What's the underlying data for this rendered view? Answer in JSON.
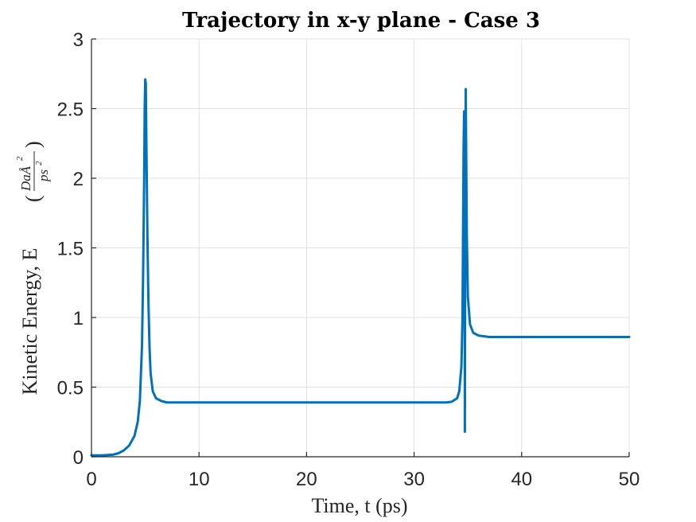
{
  "chart_data": {
    "type": "line",
    "title": "Trajectory in x-y plane - Case 3",
    "xlabel": "Time, t (ps)",
    "ylabel": "Kinetic Energy, E",
    "ylabel_unit": {
      "numerator": "DaÅ",
      "numerator_exp": "2",
      "denominator": "ps",
      "denominator_exp": "2"
    },
    "xlim": [
      0,
      50
    ],
    "ylim": [
      0,
      3
    ],
    "xticks": [
      0,
      10,
      20,
      30,
      40,
      50
    ],
    "yticks": [
      0,
      0.5,
      1,
      1.5,
      2,
      2.5,
      3
    ],
    "xtick_labels": [
      "0",
      "10",
      "20",
      "30",
      "40",
      "50"
    ],
    "ytick_labels": [
      "0",
      "0.5",
      "1",
      "1.5",
      "2",
      "2.5",
      "3"
    ],
    "grid": true,
    "line_color": "#0072BD",
    "series": [
      {
        "x": [
          0,
          1,
          2,
          2.5,
          3,
          3.5,
          4,
          4.3,
          4.5,
          4.7,
          4.8,
          4.9,
          4.95,
          5.0,
          5.05,
          5.1,
          5.2,
          5.3,
          5.4,
          5.5,
          5.7,
          6.0,
          6.5,
          7,
          8,
          10,
          20,
          30,
          32,
          33,
          33.5,
          34,
          34.2,
          34.4,
          34.5,
          34.55,
          34.6,
          34.65,
          34.7,
          34.72,
          34.75,
          34.8,
          34.85,
          34.9,
          35.0,
          35.2,
          35.5,
          36,
          36.5,
          37,
          40,
          45,
          50
        ],
        "y": [
          0.01,
          0.01,
          0.015,
          0.025,
          0.045,
          0.08,
          0.15,
          0.25,
          0.4,
          0.8,
          1.3,
          2.0,
          2.5,
          2.71,
          2.68,
          2.3,
          1.6,
          1.1,
          0.78,
          0.6,
          0.47,
          0.42,
          0.4,
          0.39,
          0.39,
          0.39,
          0.39,
          0.39,
          0.39,
          0.39,
          0.395,
          0.42,
          0.47,
          0.65,
          1.0,
          1.6,
          2.2,
          2.48,
          2.0,
          0.18,
          1.5,
          2.64,
          2.1,
          1.6,
          1.15,
          0.95,
          0.89,
          0.87,
          0.865,
          0.86,
          0.86,
          0.86,
          0.86
        ]
      }
    ]
  }
}
